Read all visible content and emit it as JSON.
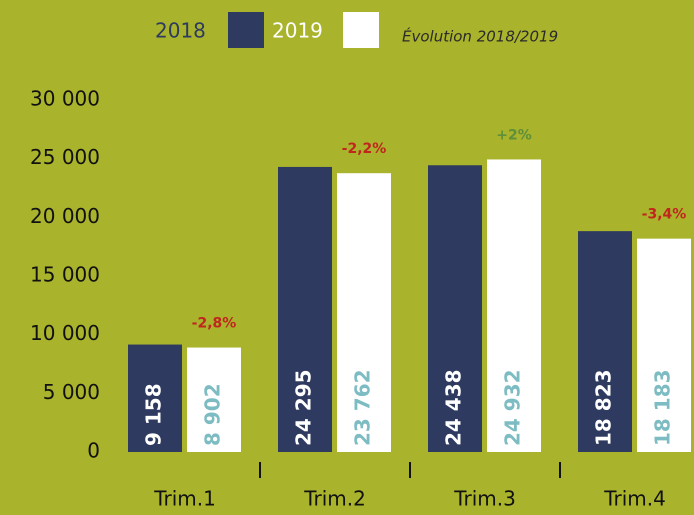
{
  "chart_data": {
    "type": "bar",
    "categories": [
      "Trim.1",
      "Trim.2",
      "Trim.3",
      "Trim.4"
    ],
    "series": [
      {
        "name": "2018",
        "color": "#2e3a60",
        "values": [
          9158,
          24295,
          24438,
          18823
        ],
        "value_labels": [
          "9 158",
          "24 295",
          "24 438",
          "18 823"
        ],
        "label_color": "#ffffff"
      },
      {
        "name": "2019",
        "color": "#ffffff",
        "values": [
          8902,
          23762,
          24932,
          18183
        ],
        "value_labels": [
          "8 902",
          "23 762",
          "24 932",
          "18 183"
        ],
        "label_color": "#7dbcc2"
      }
    ],
    "evolution_title": "Évolution 2018/2019",
    "evolution_labels": [
      "-2,8%",
      "-2,2%",
      "+2%",
      "-3,4%"
    ],
    "evolution_colors": [
      "#c0261e",
      "#c0261e",
      "#5e8f3a",
      "#c0261e"
    ],
    "ylim": [
      0,
      30000
    ],
    "yticks": [
      {
        "value": 0,
        "label": "0"
      },
      {
        "value": 5000,
        "label": "5 000"
      },
      {
        "value": 10000,
        "label": "10 000"
      },
      {
        "value": 15000,
        "label": "15 000"
      },
      {
        "value": 20000,
        "label": "20 000"
      },
      {
        "value": 25000,
        "label": "25 000"
      },
      {
        "value": 30000,
        "label": "30 000"
      }
    ],
    "grid": false,
    "background": "#a9b32b"
  }
}
